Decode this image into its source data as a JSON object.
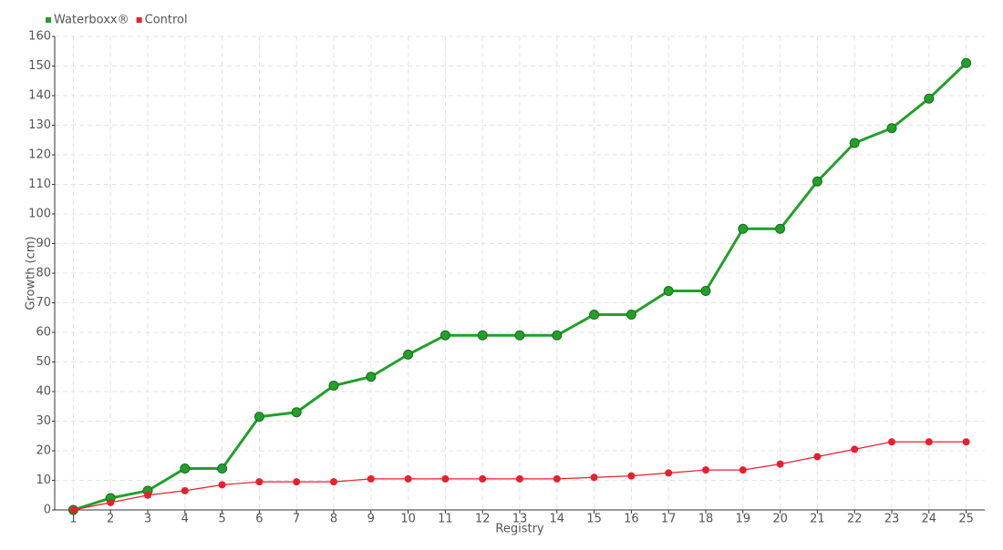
{
  "chart_data": {
    "type": "line",
    "x_label": "Registry",
    "y_label": "Growth (cm)",
    "x": [
      1,
      2,
      3,
      4,
      5,
      6,
      7,
      8,
      9,
      10,
      11,
      12,
      13,
      14,
      15,
      16,
      17,
      18,
      19,
      20,
      21,
      22,
      23,
      24,
      25
    ],
    "xlim": [
      0.5,
      25.5
    ],
    "xticks": [
      1,
      2,
      3,
      4,
      5,
      6,
      7,
      8,
      9,
      10,
      11,
      12,
      13,
      14,
      15,
      16,
      17,
      18,
      19,
      20,
      21,
      22,
      23,
      24,
      25
    ],
    "ylim": [
      0,
      160
    ],
    "yticks": [
      0,
      10,
      20,
      30,
      40,
      50,
      60,
      70,
      80,
      90,
      100,
      110,
      120,
      130,
      140,
      150,
      160
    ],
    "grid": true,
    "legend": "top-left",
    "series": [
      {
        "name": "Waterboxx®",
        "color": "#22a02a",
        "values": [
          0,
          4,
          6.5,
          14,
          14,
          31.5,
          33,
          42,
          45,
          52.5,
          59,
          59,
          59,
          59,
          66,
          66,
          74,
          74,
          95,
          95,
          111,
          124,
          129,
          139,
          151
        ]
      },
      {
        "name": "Control",
        "color": "#e8202e",
        "values": [
          0,
          2.5,
          5,
          6.5,
          8.5,
          9.5,
          9.5,
          9.5,
          10.5,
          10.5,
          10.5,
          10.5,
          10.5,
          10.5,
          11,
          11.5,
          12.5,
          13.5,
          13.5,
          15.5,
          18,
          20.5,
          23,
          23,
          23
        ]
      }
    ]
  }
}
